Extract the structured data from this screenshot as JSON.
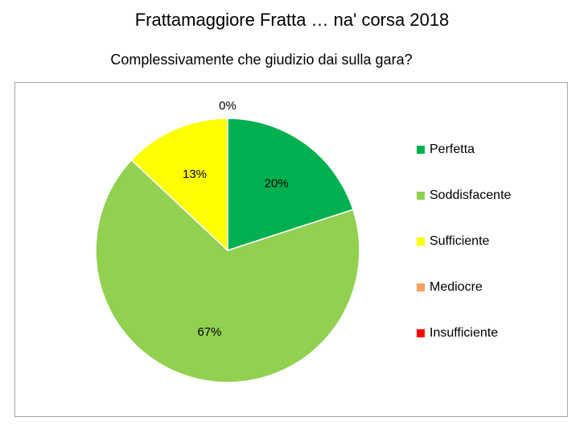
{
  "page": {
    "title": "Frattamaggiore Fratta … na' corsa 2018"
  },
  "chart_data": {
    "type": "pie",
    "title": "Complessivamente che giudizio dai sulla gara?",
    "categories": [
      "Perfetta",
      "Soddisfacente",
      "Sufficiente",
      "Mediocre",
      "Insufficiente"
    ],
    "values": [
      20,
      67,
      13,
      0,
      0
    ],
    "labels": [
      "20%",
      "67%",
      "13%",
      "",
      "0%"
    ],
    "colors": [
      "#00b050",
      "#92d050",
      "#ffff00",
      "#f4a460",
      "#ff0000"
    ],
    "legend_position": "right",
    "start_angle": "top, clockwise"
  }
}
